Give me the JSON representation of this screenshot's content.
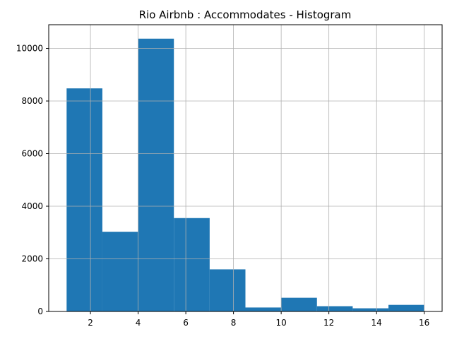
{
  "chart_data": {
    "type": "bar",
    "title": "Rio Airbnb : Accommodates - Histogram",
    "xlabel": "",
    "ylabel": "",
    "xlim": [
      0.25,
      16.75
    ],
    "ylim": [
      0,
      10900
    ],
    "x_ticks": [
      2,
      4,
      6,
      8,
      10,
      12,
      14,
      16
    ],
    "y_ticks": [
      0,
      2000,
      4000,
      6000,
      8000,
      10000
    ],
    "grid": true,
    "bar_color": "#1f77b4",
    "bins": [
      {
        "start": 1.0,
        "end": 2.5,
        "count": 8480
      },
      {
        "start": 2.5,
        "end": 4.0,
        "count": 3030
      },
      {
        "start": 4.0,
        "end": 5.5,
        "count": 10370
      },
      {
        "start": 5.5,
        "end": 7.0,
        "count": 3550
      },
      {
        "start": 7.0,
        "end": 8.5,
        "count": 1600
      },
      {
        "start": 8.5,
        "end": 10.0,
        "count": 150
      },
      {
        "start": 10.0,
        "end": 11.5,
        "count": 520
      },
      {
        "start": 11.5,
        "end": 13.0,
        "count": 200
      },
      {
        "start": 13.0,
        "end": 14.5,
        "count": 120
      },
      {
        "start": 14.5,
        "end": 16.0,
        "count": 250
      }
    ]
  }
}
